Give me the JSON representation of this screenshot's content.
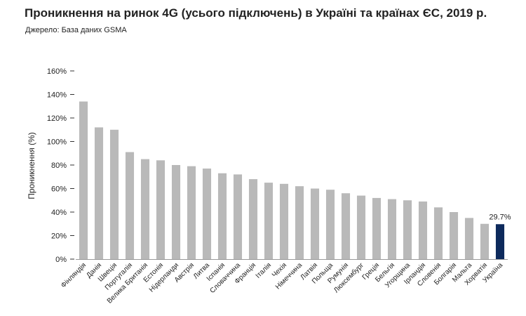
{
  "header": {
    "title": "Проникнення на ринок 4G (усього підключень) в Україні та країнах ЄС, 2019 р.",
    "source": "Джерело: База даних GSMA"
  },
  "colors": {
    "bar": "#b9b9b9",
    "highlight": "#0d2a5c",
    "axis": "#999999"
  },
  "chart_data": {
    "type": "bar",
    "ylabel": "Проникнення (%)",
    "xlabel": "",
    "ylim": [
      0,
      160
    ],
    "yticks": [
      "0%",
      "20%",
      "40%",
      "60%",
      "80%",
      "100%",
      "120%",
      "140%",
      "160%"
    ],
    "grid": false,
    "categories": [
      "Фінляндія",
      "Данія",
      "Швеція",
      "Португалія",
      "Велика Британія",
      "Естонія",
      "Нідерланди",
      "Австрія",
      "Литва",
      "Іспанія",
      "Словаччина",
      "Франція",
      "Італія",
      "Чехія",
      "Німеччина",
      "Латвія",
      "Польща",
      "Румунія",
      "Люксембург",
      "Греція",
      "Бельгія",
      "Угорщина",
      "Ірландія",
      "Словенія",
      "Болгарія",
      "Мальта",
      "Хорватія",
      "Україна"
    ],
    "values": [
      134,
      112,
      110,
      91,
      85,
      84,
      80,
      79,
      77,
      73,
      72,
      68,
      65,
      64,
      62,
      60,
      59,
      56,
      54,
      52,
      51,
      50,
      49,
      44,
      40,
      35,
      30,
      29.7
    ],
    "highlight_category": "Україна",
    "data_labels": [
      {
        "category": "Україна",
        "text": "29.7%"
      }
    ]
  }
}
